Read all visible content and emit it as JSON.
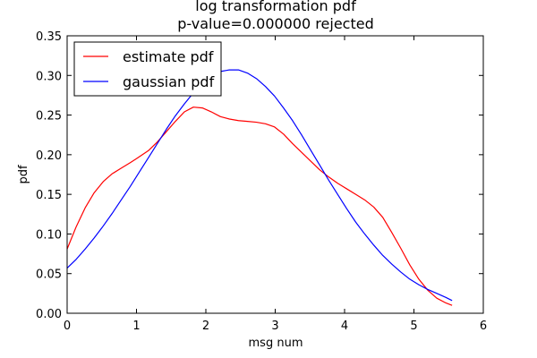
{
  "chart_data": {
    "type": "line",
    "title": "log transformation pdf",
    "subtitle": "p-value=0.000000  rejected",
    "xlabel": "msg num",
    "ylabel": "pdf",
    "xlim": [
      0,
      6
    ],
    "ylim": [
      0,
      0.35
    ],
    "xticks": [
      "0",
      "1",
      "2",
      "3",
      "4",
      "5",
      "6"
    ],
    "yticks": [
      "0.00",
      "0.05",
      "0.10",
      "0.15",
      "0.20",
      "0.25",
      "0.30",
      "0.35"
    ],
    "xtick_values": [
      0,
      1,
      2,
      3,
      4,
      5,
      6
    ],
    "ytick_values": [
      0,
      0.05,
      0.1,
      0.15,
      0.2,
      0.25,
      0.3,
      0.35
    ],
    "grid": false,
    "legend_position": "top-left",
    "series": [
      {
        "name": "estimate pdf",
        "color": "#ff0000",
        "x": [
          0,
          0.13,
          0.26,
          0.39,
          0.52,
          0.65,
          0.78,
          0.91,
          1.0,
          1.17,
          1.3,
          1.43,
          1.56,
          1.69,
          1.82,
          1.95,
          2.08,
          2.21,
          2.34,
          2.47,
          2.6,
          2.73,
          2.86,
          2.99,
          3.12,
          3.25,
          3.38,
          3.51,
          3.64,
          3.77,
          3.9,
          4.03,
          4.16,
          4.29,
          4.42,
          4.55,
          4.68,
          4.81,
          4.94,
          5.07,
          5.2,
          5.33,
          5.46,
          5.55
        ],
        "y": [
          0.081,
          0.109,
          0.133,
          0.152,
          0.166,
          0.176,
          0.183,
          0.19,
          0.195,
          0.205,
          0.216,
          0.229,
          0.242,
          0.254,
          0.26,
          0.259,
          0.254,
          0.248,
          0.245,
          0.243,
          0.242,
          0.241,
          0.239,
          0.235,
          0.226,
          0.214,
          0.203,
          0.192,
          0.181,
          0.172,
          0.164,
          0.157,
          0.15,
          0.143,
          0.134,
          0.121,
          0.102,
          0.082,
          0.061,
          0.043,
          0.029,
          0.019,
          0.013,
          0.01
        ]
      },
      {
        "name": "gaussian pdf",
        "color": "#0000ff",
        "x": [
          0,
          0.13,
          0.26,
          0.39,
          0.52,
          0.65,
          0.78,
          0.91,
          1.04,
          1.17,
          1.3,
          1.43,
          1.56,
          1.69,
          1.82,
          1.95,
          2.08,
          2.21,
          2.34,
          2.47,
          2.6,
          2.73,
          2.86,
          2.99,
          3.12,
          3.25,
          3.38,
          3.51,
          3.64,
          3.77,
          3.9,
          4.03,
          4.16,
          4.29,
          4.42,
          4.55,
          4.68,
          4.81,
          4.94,
          5.07,
          5.2,
          5.33,
          5.46,
          5.55
        ],
        "y": [
          0.057,
          0.068,
          0.081,
          0.095,
          0.11,
          0.126,
          0.143,
          0.16,
          0.178,
          0.196,
          0.214,
          0.232,
          0.249,
          0.264,
          0.278,
          0.29,
          0.299,
          0.305,
          0.307,
          0.307,
          0.303,
          0.296,
          0.286,
          0.274,
          0.259,
          0.243,
          0.225,
          0.206,
          0.187,
          0.168,
          0.15,
          0.132,
          0.115,
          0.1,
          0.086,
          0.073,
          0.062,
          0.052,
          0.043,
          0.036,
          0.03,
          0.025,
          0.02,
          0.016
        ]
      }
    ]
  }
}
